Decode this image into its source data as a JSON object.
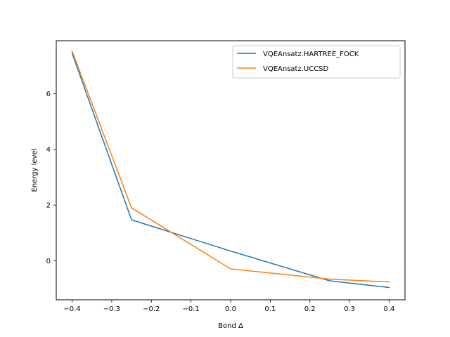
{
  "chart_data": {
    "type": "line",
    "title": "",
    "xlabel": "Bond Δ",
    "ylabel": "Energy level",
    "xlim": [
      -0.44,
      0.44
    ],
    "ylim": [
      -1.4,
      7.9
    ],
    "xticks": [
      {
        "value": -0.4,
        "label": "−0.4"
      },
      {
        "value": -0.3,
        "label": "−0.3"
      },
      {
        "value": -0.2,
        "label": "−0.2"
      },
      {
        "value": -0.1,
        "label": "−0.1"
      },
      {
        "value": 0.0,
        "label": "0.0"
      },
      {
        "value": 0.1,
        "label": "0.1"
      },
      {
        "value": 0.2,
        "label": "0.2"
      },
      {
        "value": 0.3,
        "label": "0.3"
      },
      {
        "value": 0.4,
        "label": "0.4"
      }
    ],
    "yticks": [
      {
        "value": 0,
        "label": "0"
      },
      {
        "value": 2,
        "label": "2"
      },
      {
        "value": 4,
        "label": "4"
      },
      {
        "value": 6,
        "label": "6"
      }
    ],
    "grid": false,
    "legend": "top-right",
    "x": [
      -0.4,
      -0.25,
      0.0,
      0.25,
      0.4
    ],
    "series": [
      {
        "name": "VQEAnsatz.HARTREE_FOCK",
        "color": "#1f77b4",
        "values": [
          7.45,
          1.47,
          0.35,
          -0.72,
          -0.96
        ]
      },
      {
        "name": "VQEAnsatz.UCCSD",
        "color": "#ff7f0e",
        "values": [
          7.53,
          1.9,
          -0.29,
          -0.66,
          -0.76
        ]
      }
    ]
  }
}
